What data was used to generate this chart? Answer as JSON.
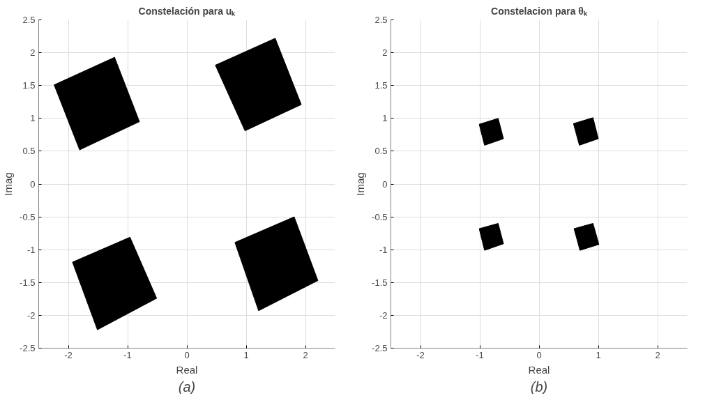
{
  "chart_data": [
    {
      "type": "area",
      "title": "Constelación para uₖ",
      "xlabel": "Real",
      "ylabel": "Imag",
      "annotations": [
        "(a)"
      ],
      "xlim": [
        -2.5,
        2.5
      ],
      "ylim": [
        -2.5,
        2.5
      ],
      "xticks": [
        -2,
        -1,
        0,
        1,
        2
      ],
      "yticks": [
        -2.5,
        -2,
        -1.5,
        -1,
        -0.5,
        0,
        0.5,
        1,
        1.5,
        2,
        2.5
      ],
      "grid": true,
      "series": [
        {
          "color": "#000000",
          "x": [
            -2.24,
            -1.22,
            -0.8,
            -1.81
          ],
          "values": [
            1.51,
            1.93,
            0.95,
            0.52
          ]
        },
        {
          "color": "#000000",
          "x": [
            0.48,
            1.49,
            1.93,
            0.98
          ],
          "values": [
            1.81,
            2.22,
            1.21,
            0.81
          ]
        },
        {
          "color": "#000000",
          "x": [
            -1.93,
            -0.96,
            -0.51,
            -1.51
          ],
          "values": [
            -1.19,
            -0.81,
            -1.74,
            -2.22
          ]
        },
        {
          "color": "#000000",
          "x": [
            0.81,
            1.81,
            2.21,
            1.21
          ],
          "values": [
            -0.89,
            -0.5,
            -1.47,
            -1.93
          ]
        }
      ]
    },
    {
      "type": "area",
      "title": "Constelacion para θₖ",
      "xlabel": "Real",
      "ylabel": "Imag",
      "annotations": [
        "(b)"
      ],
      "xlim": [
        -2.5,
        2.5
      ],
      "ylim": [
        -2.5,
        2.5
      ],
      "xticks": [
        -2,
        -1,
        0,
        1,
        2
      ],
      "yticks": [
        -2.5,
        -2,
        -1.5,
        -1,
        -0.5,
        0,
        0.5,
        1,
        1.5,
        2,
        2.5
      ],
      "grid": true,
      "series": [
        {
          "color": "#000000",
          "x": [
            -1.01,
            -0.69,
            -0.6,
            -0.92
          ],
          "values": [
            0.91,
            1.0,
            0.69,
            0.59
          ]
        },
        {
          "color": "#000000",
          "x": [
            0.58,
            0.91,
            1.0,
            0.68
          ],
          "values": [
            0.92,
            1.01,
            0.69,
            0.59
          ]
        },
        {
          "color": "#000000",
          "x": [
            -1.01,
            -0.69,
            -0.6,
            -0.92
          ],
          "values": [
            -0.68,
            -0.6,
            -0.91,
            -1.01
          ]
        },
        {
          "color": "#000000",
          "x": [
            0.59,
            0.91,
            1.01,
            0.69
          ],
          "values": [
            -0.68,
            -0.6,
            -0.92,
            -1.01
          ]
        }
      ]
    }
  ]
}
